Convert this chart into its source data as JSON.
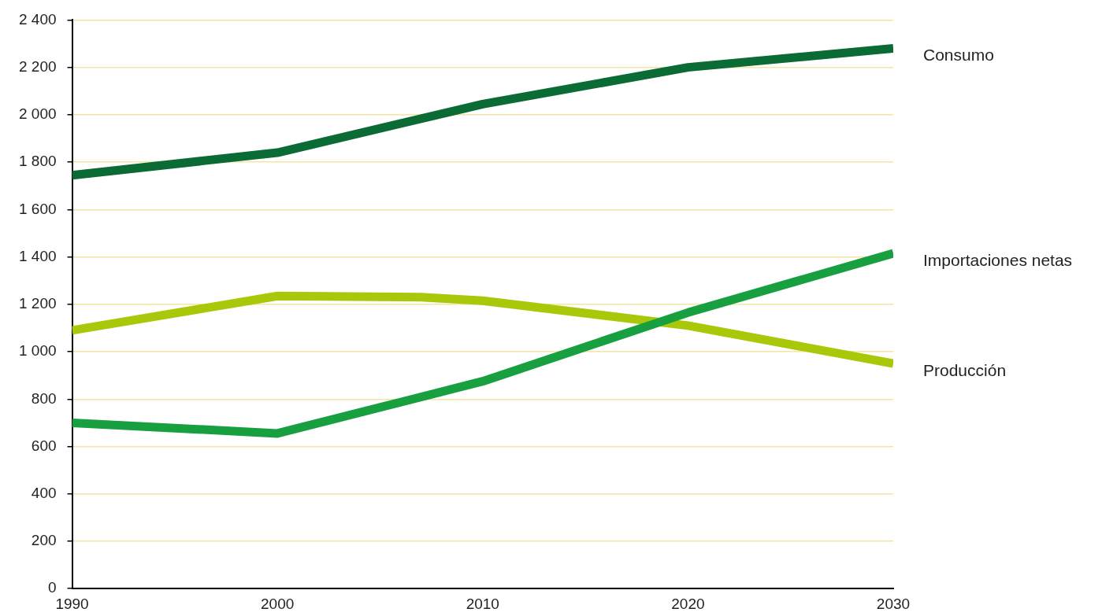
{
  "chart_data": {
    "type": "line",
    "x": [
      1990,
      2000,
      2010,
      2020,
      2030
    ],
    "series": [
      {
        "name": "Consumo",
        "color": "#0b6b35",
        "values": [
          1745,
          1840,
          2045,
          2200,
          2280
        ]
      },
      {
        "name": "Importaciones netas",
        "color": "#18a040",
        "values": [
          700,
          655,
          875,
          1165,
          1415
        ]
      },
      {
        "name": "Producción",
        "color": "#a9c80a",
        "x": [
          1990,
          2000,
          2007,
          2010,
          2020,
          2030
        ],
        "values": [
          1090,
          1235,
          1230,
          1215,
          1110,
          950
        ]
      }
    ],
    "xlim": [
      1990,
      2030
    ],
    "xticks": [
      1990,
      2000,
      2010,
      2020,
      2030
    ],
    "ylim": [
      0,
      2400
    ],
    "yticks": [
      0,
      200,
      400,
      600,
      800,
      {
        "value": 1000,
        "label": "1 000"
      },
      {
        "value": 1200,
        "label": "1 200"
      },
      {
        "value": 1400,
        "label": "1 400"
      },
      {
        "value": 1600,
        "label": "1 600"
      },
      {
        "value": 1800,
        "label": "1 800"
      },
      {
        "value": 2000,
        "label": "2 000"
      },
      {
        "value": 2200,
        "label": "2 200"
      },
      {
        "value": 2400,
        "label": "2 400"
      }
    ],
    "grid": "y",
    "legend": false,
    "marker": "none",
    "line_style": "solid"
  }
}
